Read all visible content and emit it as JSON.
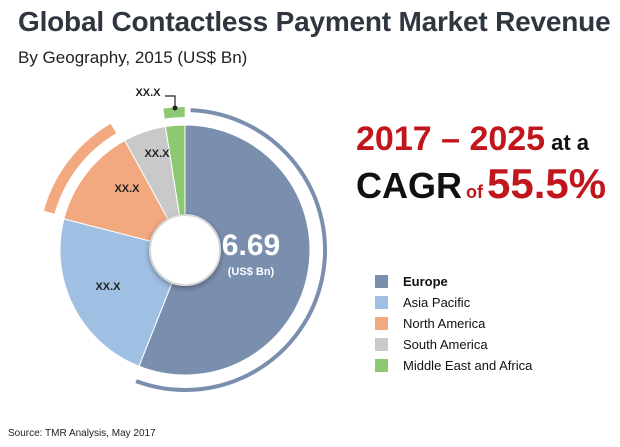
{
  "header": {
    "title": "Global Contactless Payment Market Revenue",
    "subtitle": "By Geography, 2015 (US$ Bn)"
  },
  "highlight": {
    "years": "2017 – 2025",
    "at_a": "at a",
    "cagr": "CAGR",
    "of": "of",
    "rate": "55.5%"
  },
  "footer": {
    "source": "Source: TMR Analysis, May 2017"
  },
  "chart_data": {
    "type": "pie",
    "style": "donut",
    "title": "Global Contactless Payment Market Revenue",
    "subtitle": "By Geography, 2015 (US$ Bn)",
    "center_value": "6.69",
    "center_unit": "(US$ Bn)",
    "categories": [
      "Europe",
      "Asia Pacific",
      "North America",
      "South America",
      "Middle East and Africa"
    ],
    "values": [
      56,
      23,
      13,
      5.5,
      2.5
    ],
    "value_unit": "percent of total (estimated from slice angles)",
    "labels": [
      "6.69",
      "XX.X",
      "XX.X",
      "XX.X",
      "XX.X"
    ],
    "colors": [
      "#7a8fae",
      "#9fc0e3",
      "#f2a97f",
      "#c9c9c9",
      "#8dc971"
    ],
    "legend_position": "right",
    "highlighted": "Europe"
  }
}
